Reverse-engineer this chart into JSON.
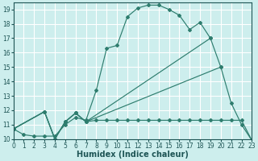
{
  "background_color": "#cdeeed",
  "grid_color": "#b8d8d6",
  "line_color": "#2e7d6e",
  "xlabel": "Humidex (Indice chaleur)",
  "xlim": [
    0,
    23
  ],
  "ylim": [
    10,
    19.5
  ],
  "yticks": [
    10,
    11,
    12,
    13,
    14,
    15,
    16,
    17,
    18,
    19
  ],
  "xticks": [
    0,
    1,
    2,
    3,
    4,
    5,
    6,
    7,
    8,
    9,
    10,
    11,
    12,
    13,
    14,
    15,
    16,
    17,
    18,
    19,
    20,
    21,
    22,
    23
  ],
  "curve1_x": [
    0,
    1,
    2,
    3,
    4,
    5,
    6,
    7,
    8,
    9,
    10,
    11,
    12,
    13,
    14,
    15,
    16,
    17,
    18,
    19,
    20,
    21,
    22,
    23
  ],
  "curve1_y": [
    10.7,
    10.3,
    10.2,
    10.2,
    10.2,
    11.0,
    11.5,
    11.3,
    13.4,
    16.3,
    16.5,
    18.5,
    19.1,
    19.3,
    19.3,
    19.0,
    18.6,
    17.6,
    18.1,
    17.0,
    15.0,
    12.5,
    11.0,
    9.9
  ],
  "curve2_x": [
    0,
    3,
    4,
    5,
    6,
    7,
    19
  ],
  "curve2_y": [
    10.7,
    11.9,
    10.0,
    11.2,
    11.8,
    11.2,
    17.0
  ],
  "curve3_x": [
    0,
    3,
    4,
    5,
    6,
    7,
    20
  ],
  "curve3_y": [
    10.7,
    11.9,
    10.0,
    11.2,
    11.8,
    11.2,
    15.0
  ],
  "curve4_x": [
    0,
    3,
    4,
    5,
    6,
    7,
    8,
    9,
    10,
    11,
    12,
    13,
    14,
    15,
    16,
    17,
    18,
    19,
    20,
    21,
    22,
    23
  ],
  "curve4_y": [
    10.7,
    11.9,
    10.0,
    11.2,
    11.8,
    11.2,
    11.3,
    11.3,
    11.3,
    11.3,
    11.3,
    11.3,
    11.3,
    11.3,
    11.3,
    11.3,
    11.3,
    11.3,
    11.3,
    11.3,
    11.3,
    9.9
  ]
}
